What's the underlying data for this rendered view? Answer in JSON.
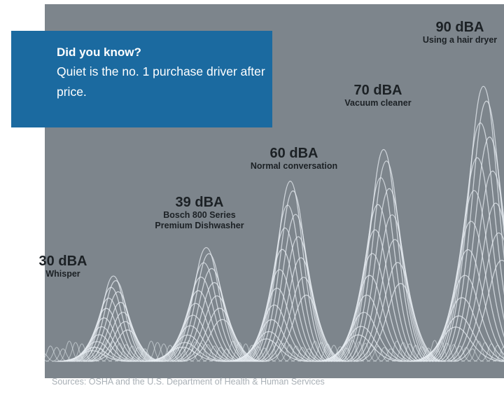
{
  "callout": {
    "heading": "Did you know?",
    "body": "Quiet is the no. 1 purchase driver after price."
  },
  "levels": [
    {
      "db": "30 dBA",
      "name": "Whisper",
      "value": 30
    },
    {
      "db": "39 dBA",
      "name": "Bosch 800 Series\nPremium Dishwasher",
      "value": 39
    },
    {
      "db": "60 dBA",
      "name": "Normal conversation",
      "value": 60
    },
    {
      "db": "70 dBA",
      "name": "Vacuum cleaner",
      "value": 70
    },
    {
      "db": "90 dBA",
      "name": "Using a hair dryer",
      "value": 90
    }
  ],
  "source": "Sources: OSHA and the U.S. Department of Health & Human Services",
  "colors": {
    "panel": "#7d858c",
    "callout": "#1b6aa0",
    "wave": "#e8eef3",
    "label": "#1c2125"
  }
}
